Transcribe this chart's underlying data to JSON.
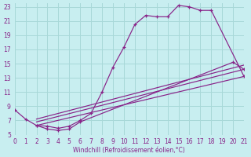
{
  "bg_color": "#c8eef0",
  "grid_color": "#a8d8d8",
  "line_color": "#882288",
  "xlim": [
    0,
    21
  ],
  "ylim": [
    5,
    23.5
  ],
  "xticks": [
    0,
    1,
    2,
    3,
    4,
    5,
    6,
    7,
    8,
    9,
    10,
    11,
    12,
    13,
    14,
    15,
    16,
    17,
    18,
    19,
    20,
    21
  ],
  "yticks": [
    5,
    7,
    9,
    11,
    13,
    15,
    17,
    19,
    21,
    23
  ],
  "xlabel": "Windchill (Refroidissement éolien,°C)",
  "curve1_x": [
    0,
    1,
    2,
    3,
    4,
    5,
    6,
    7,
    8,
    9,
    10,
    11,
    12,
    13,
    14,
    15,
    16,
    17,
    18,
    21
  ],
  "curve1_y": [
    8.5,
    7.2,
    6.3,
    6.2,
    5.9,
    6.2,
    7.0,
    8.0,
    11.0,
    14.5,
    17.3,
    20.5,
    21.8,
    21.6,
    21.6,
    23.2,
    23.0,
    22.5,
    22.5,
    13.2
  ],
  "curve2_x": [
    2,
    3,
    4,
    5,
    6,
    20,
    21
  ],
  "curve2_y": [
    6.3,
    5.8,
    5.6,
    5.8,
    6.8,
    15.2,
    14.2
  ],
  "line1_x": [
    2,
    21
  ],
  "line1_y": [
    6.8,
    14.2
  ],
  "line2_x": [
    2,
    21
  ],
  "line2_y": [
    7.2,
    14.8
  ],
  "line3_x": [
    2,
    21
  ],
  "line3_y": [
    6.3,
    13.2
  ]
}
